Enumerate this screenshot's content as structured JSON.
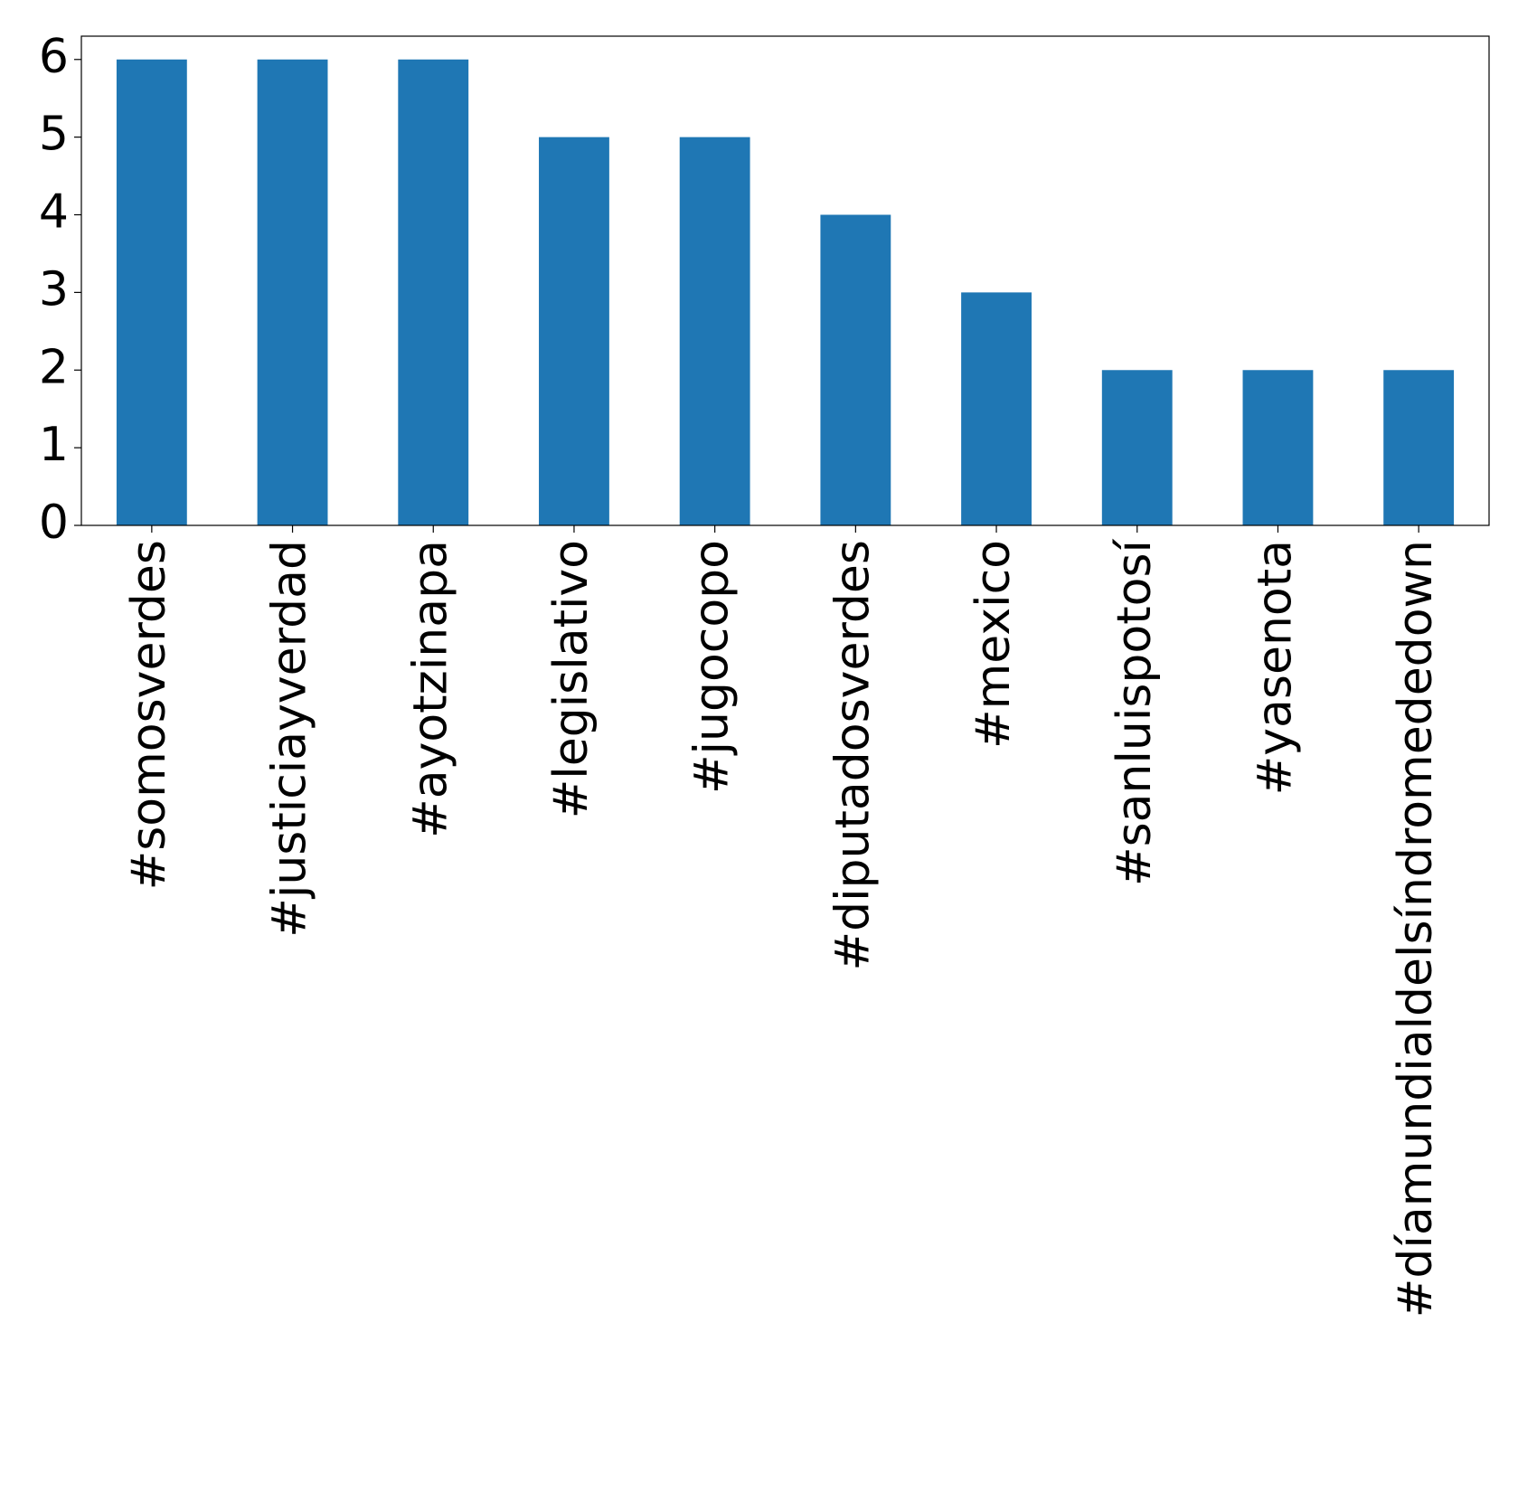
{
  "chart_data": {
    "type": "bar",
    "categories": [
      "#somosverdes",
      "#justiciayverdad",
      "#ayotzinapa",
      "#legislativo",
      "#jugocopo",
      "#diputadosverdes",
      "#mexico",
      "#sanluispotosí",
      "#yasenota",
      "#díamundialdelsíndromededown"
    ],
    "values": [
      6,
      6,
      6,
      5,
      5,
      4,
      3,
      2,
      2,
      2
    ],
    "color": "#1f77b4",
    "ylim": [
      0,
      6.3
    ],
    "yticks": [
      0,
      1,
      2,
      3,
      4,
      5,
      6
    ],
    "grid": false
  }
}
